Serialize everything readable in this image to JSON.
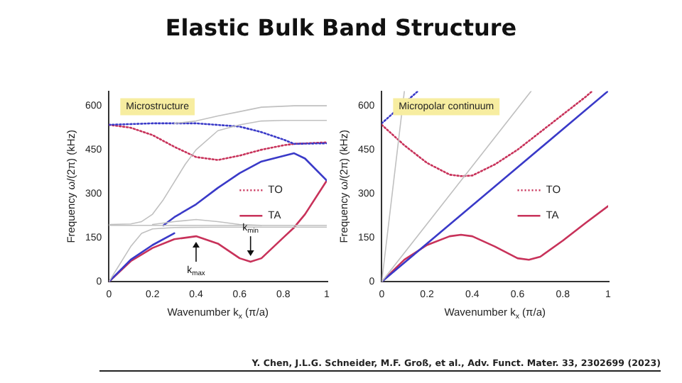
{
  "chart_data": [
    {
      "type": "line",
      "title": "Elastic Bulk Band Structure",
      "xlabel": "Wavenumber k$_{x}$ (π/a)",
      "ylabel": "Frequency ω/(2π) (kHz)",
      "xlim": [
        0,
        1
      ],
      "ylim": [
        0,
        650
      ],
      "xticks": [
        0,
        0.2,
        0.4,
        0.6,
        0.8,
        1
      ],
      "yticks": [
        0,
        150,
        300,
        450,
        600
      ],
      "legend": "right",
      "marker": "none",
      "annotations": [
        "Microstructure",
        {
          "text": "k$_{max}$",
          "x": 0.4,
          "y": 155
        },
        {
          "text": "k$_{min}$",
          "x": 0.65,
          "y": 68
        }
      ],
      "series": [
        {
          "color": "#c0c0c0",
          "x": [
            0,
            0.05,
            0.1,
            0.15,
            0.2,
            0.3,
            0.5,
            1
          ],
          "values": [
            0,
            60,
            120,
            165,
            180,
            185,
            186,
            186
          ]
        },
        {
          "color": "#c0c0c0",
          "x": [
            0,
            1
          ],
          "values": [
            192,
            192
          ]
        },
        {
          "color": "#c0c0c0",
          "x": [
            0,
            0.1,
            0.15,
            0.2,
            0.25,
            0.3,
            0.35,
            0.4,
            0.5,
            0.6,
            0.7,
            0.8,
            1
          ],
          "values": [
            195,
            197,
            205,
            230,
            280,
            340,
            400,
            450,
            515,
            535,
            548,
            550,
            550
          ]
        },
        {
          "color": "#c0c0c0",
          "x": [
            0.2,
            0.3,
            0.4,
            0.5,
            0.6,
            0.7
          ],
          "values": [
            195,
            205,
            212,
            205,
            195,
            192
          ]
        },
        {
          "color": "#c0c0c0",
          "x": [
            0.3,
            0.4,
            0.5,
            0.6,
            0.7,
            0.85,
            1
          ],
          "values": [
            540,
            548,
            565,
            580,
            595,
            600,
            600
          ]
        },
        {
          "color": "#3a3ac8",
          "line_style": "dotted",
          "x": [
            0,
            0.2,
            0.4,
            0.6,
            0.7,
            0.8,
            0.85,
            1
          ],
          "values": [
            535,
            540,
            540,
            529,
            510,
            485,
            470,
            472
          ]
        },
        {
          "name": "TO",
          "color": "#c8325a",
          "line_style": "dotted",
          "x": [
            0,
            0.1,
            0.2,
            0.3,
            0.4,
            0.5,
            0.6,
            0.7,
            0.8,
            0.85,
            1
          ],
          "values": [
            535,
            525,
            500,
            460,
            425,
            415,
            430,
            450,
            465,
            470,
            475
          ]
        },
        {
          "color": "#3a3ac8",
          "x": [
            0,
            0.1,
            0.2,
            0.3
          ],
          "values": [
            0,
            75,
            125,
            165
          ]
        },
        {
          "color": "#3a3ac8",
          "x": [
            0.25,
            0.3,
            0.4,
            0.5,
            0.6,
            0.7,
            0.85,
            0.9,
            1
          ],
          "values": [
            192,
            220,
            264,
            320,
            370,
            410,
            438,
            420,
            345
          ]
        },
        {
          "name": "TA",
          "color": "#c8325a",
          "x": [
            0,
            0.1,
            0.2,
            0.3,
            0.4,
            0.5,
            0.6,
            0.65,
            0.7,
            0.8,
            0.85,
            0.9,
            1
          ],
          "values": [
            0,
            70,
            115,
            145,
            155,
            130,
            80,
            68,
            80,
            150,
            185,
            230,
            345
          ]
        }
      ]
    },
    {
      "type": "line",
      "xlabel": "Wavenumber k$_{x}$ (π/a)",
      "ylabel": "Frequency ω/(2π) (kHz)",
      "xlim": [
        0,
        1
      ],
      "ylim": [
        0,
        650
      ],
      "xticks": [
        0,
        0.2,
        0.4,
        0.6,
        0.8,
        1
      ],
      "yticks": [
        0,
        150,
        300,
        450,
        600
      ],
      "legend": "right",
      "marker": "none",
      "annotations": [
        "Micropolar continuum",
        "Y. Chen, J.L.G. Schneider, M.F. Groß, et al., Adv. Funct. Mater. 33, 2302699 (2023)"
      ],
      "series": [
        {
          "color": "#c0c0c0",
          "x": [
            0,
            0.1
          ],
          "values": [
            0,
            650
          ]
        },
        {
          "color": "#c0c0c0",
          "x": [
            0,
            0.66
          ],
          "values": [
            0,
            650
          ]
        },
        {
          "color": "#3a3ac8",
          "line_style": "dotted",
          "x": [
            0,
            0.16
          ],
          "values": [
            540,
            650
          ]
        },
        {
          "name": "TO",
          "color": "#c8325a",
          "line_style": "dotted",
          "x": [
            0,
            0.1,
            0.2,
            0.3,
            0.35,
            0.4,
            0.5,
            0.6,
            0.7,
            0.8,
            0.9,
            0.93
          ],
          "values": [
            535,
            465,
            405,
            365,
            360,
            362,
            400,
            450,
            510,
            570,
            630,
            650
          ]
        },
        {
          "color": "#3a3ac8",
          "x": [
            0,
            1
          ],
          "values": [
            0,
            650
          ]
        },
        {
          "name": "TA",
          "color": "#c8325a",
          "x": [
            0,
            0.1,
            0.2,
            0.3,
            0.35,
            0.4,
            0.5,
            0.6,
            0.65,
            0.7,
            0.8,
            0.9,
            1
          ],
          "values": [
            0,
            75,
            125,
            155,
            160,
            155,
            120,
            80,
            75,
            85,
            140,
            200,
            258
          ]
        }
      ]
    }
  ]
}
